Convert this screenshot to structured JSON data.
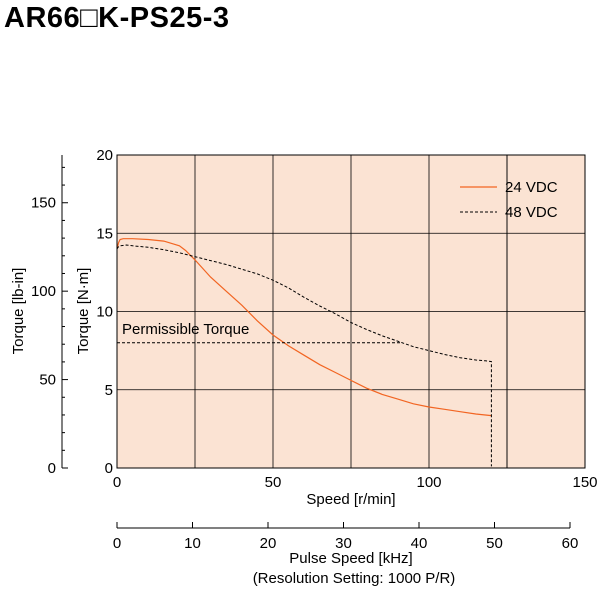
{
  "page": {
    "title": "AR66□K-PS25-3"
  },
  "chart_data": {
    "type": "line",
    "title": "AR66□K-PS25-3",
    "xlabel": "Speed [r/min]",
    "ylabel": "Torque [N·m]",
    "y2label": "Torque [lb-in]",
    "x2label_line1": "Pulse Speed [kHz]",
    "x2label_line2": "(Resolution Setting: 1000 P/R)",
    "xlim": [
      0,
      150
    ],
    "ylim": [
      0,
      20
    ],
    "y2lim": [
      0,
      177
    ],
    "x2lim": [
      0,
      60
    ],
    "xticks": [
      "0",
      "50",
      "100",
      "150"
    ],
    "yticks": [
      "0",
      "5",
      "10",
      "15",
      "20"
    ],
    "y2ticks": [
      "0",
      "50",
      "100",
      "150"
    ],
    "x2ticks": [
      "0",
      "10",
      "20",
      "30",
      "40",
      "50",
      "60"
    ],
    "grid": true,
    "legend_position": "top-right",
    "background_color": "#fbe3d3",
    "series": [
      {
        "name": "24 VDC",
        "style": "solid",
        "color": "#f26522",
        "x": [
          0,
          0.5,
          1,
          2,
          5,
          10,
          15,
          20,
          22,
          25,
          30,
          35,
          40,
          45,
          50,
          55,
          60,
          65,
          70,
          75,
          80,
          85,
          90,
          95,
          100,
          105,
          110,
          115,
          120
        ],
        "y": [
          14.0,
          14.4,
          14.6,
          14.65,
          14.65,
          14.6,
          14.5,
          14.2,
          13.9,
          13.3,
          12.2,
          11.3,
          10.4,
          9.4,
          8.5,
          7.8,
          7.2,
          6.6,
          6.1,
          5.6,
          5.1,
          4.7,
          4.4,
          4.1,
          3.9,
          3.75,
          3.6,
          3.45,
          3.35
        ]
      },
      {
        "name": "48 VDC",
        "style": "dashed",
        "color": "#000000",
        "x": [
          0,
          0.5,
          1,
          3,
          5,
          10,
          15,
          20,
          25,
          30,
          35,
          40,
          45,
          50,
          55,
          60,
          65,
          70,
          75,
          80,
          85,
          90,
          95,
          100,
          105,
          110,
          115,
          118,
          120,
          120
        ],
        "y": [
          14.0,
          14.15,
          14.2,
          14.25,
          14.2,
          14.1,
          13.95,
          13.75,
          13.5,
          13.25,
          13.0,
          12.7,
          12.4,
          12.0,
          11.5,
          10.9,
          10.35,
          9.85,
          9.3,
          8.85,
          8.45,
          8.1,
          7.75,
          7.5,
          7.25,
          7.05,
          6.9,
          6.85,
          6.8,
          0.1
        ]
      }
    ],
    "annotations": [
      {
        "text": "Permissible Torque",
        "x": 0,
        "y": 8.0,
        "style": "dashed"
      }
    ]
  }
}
